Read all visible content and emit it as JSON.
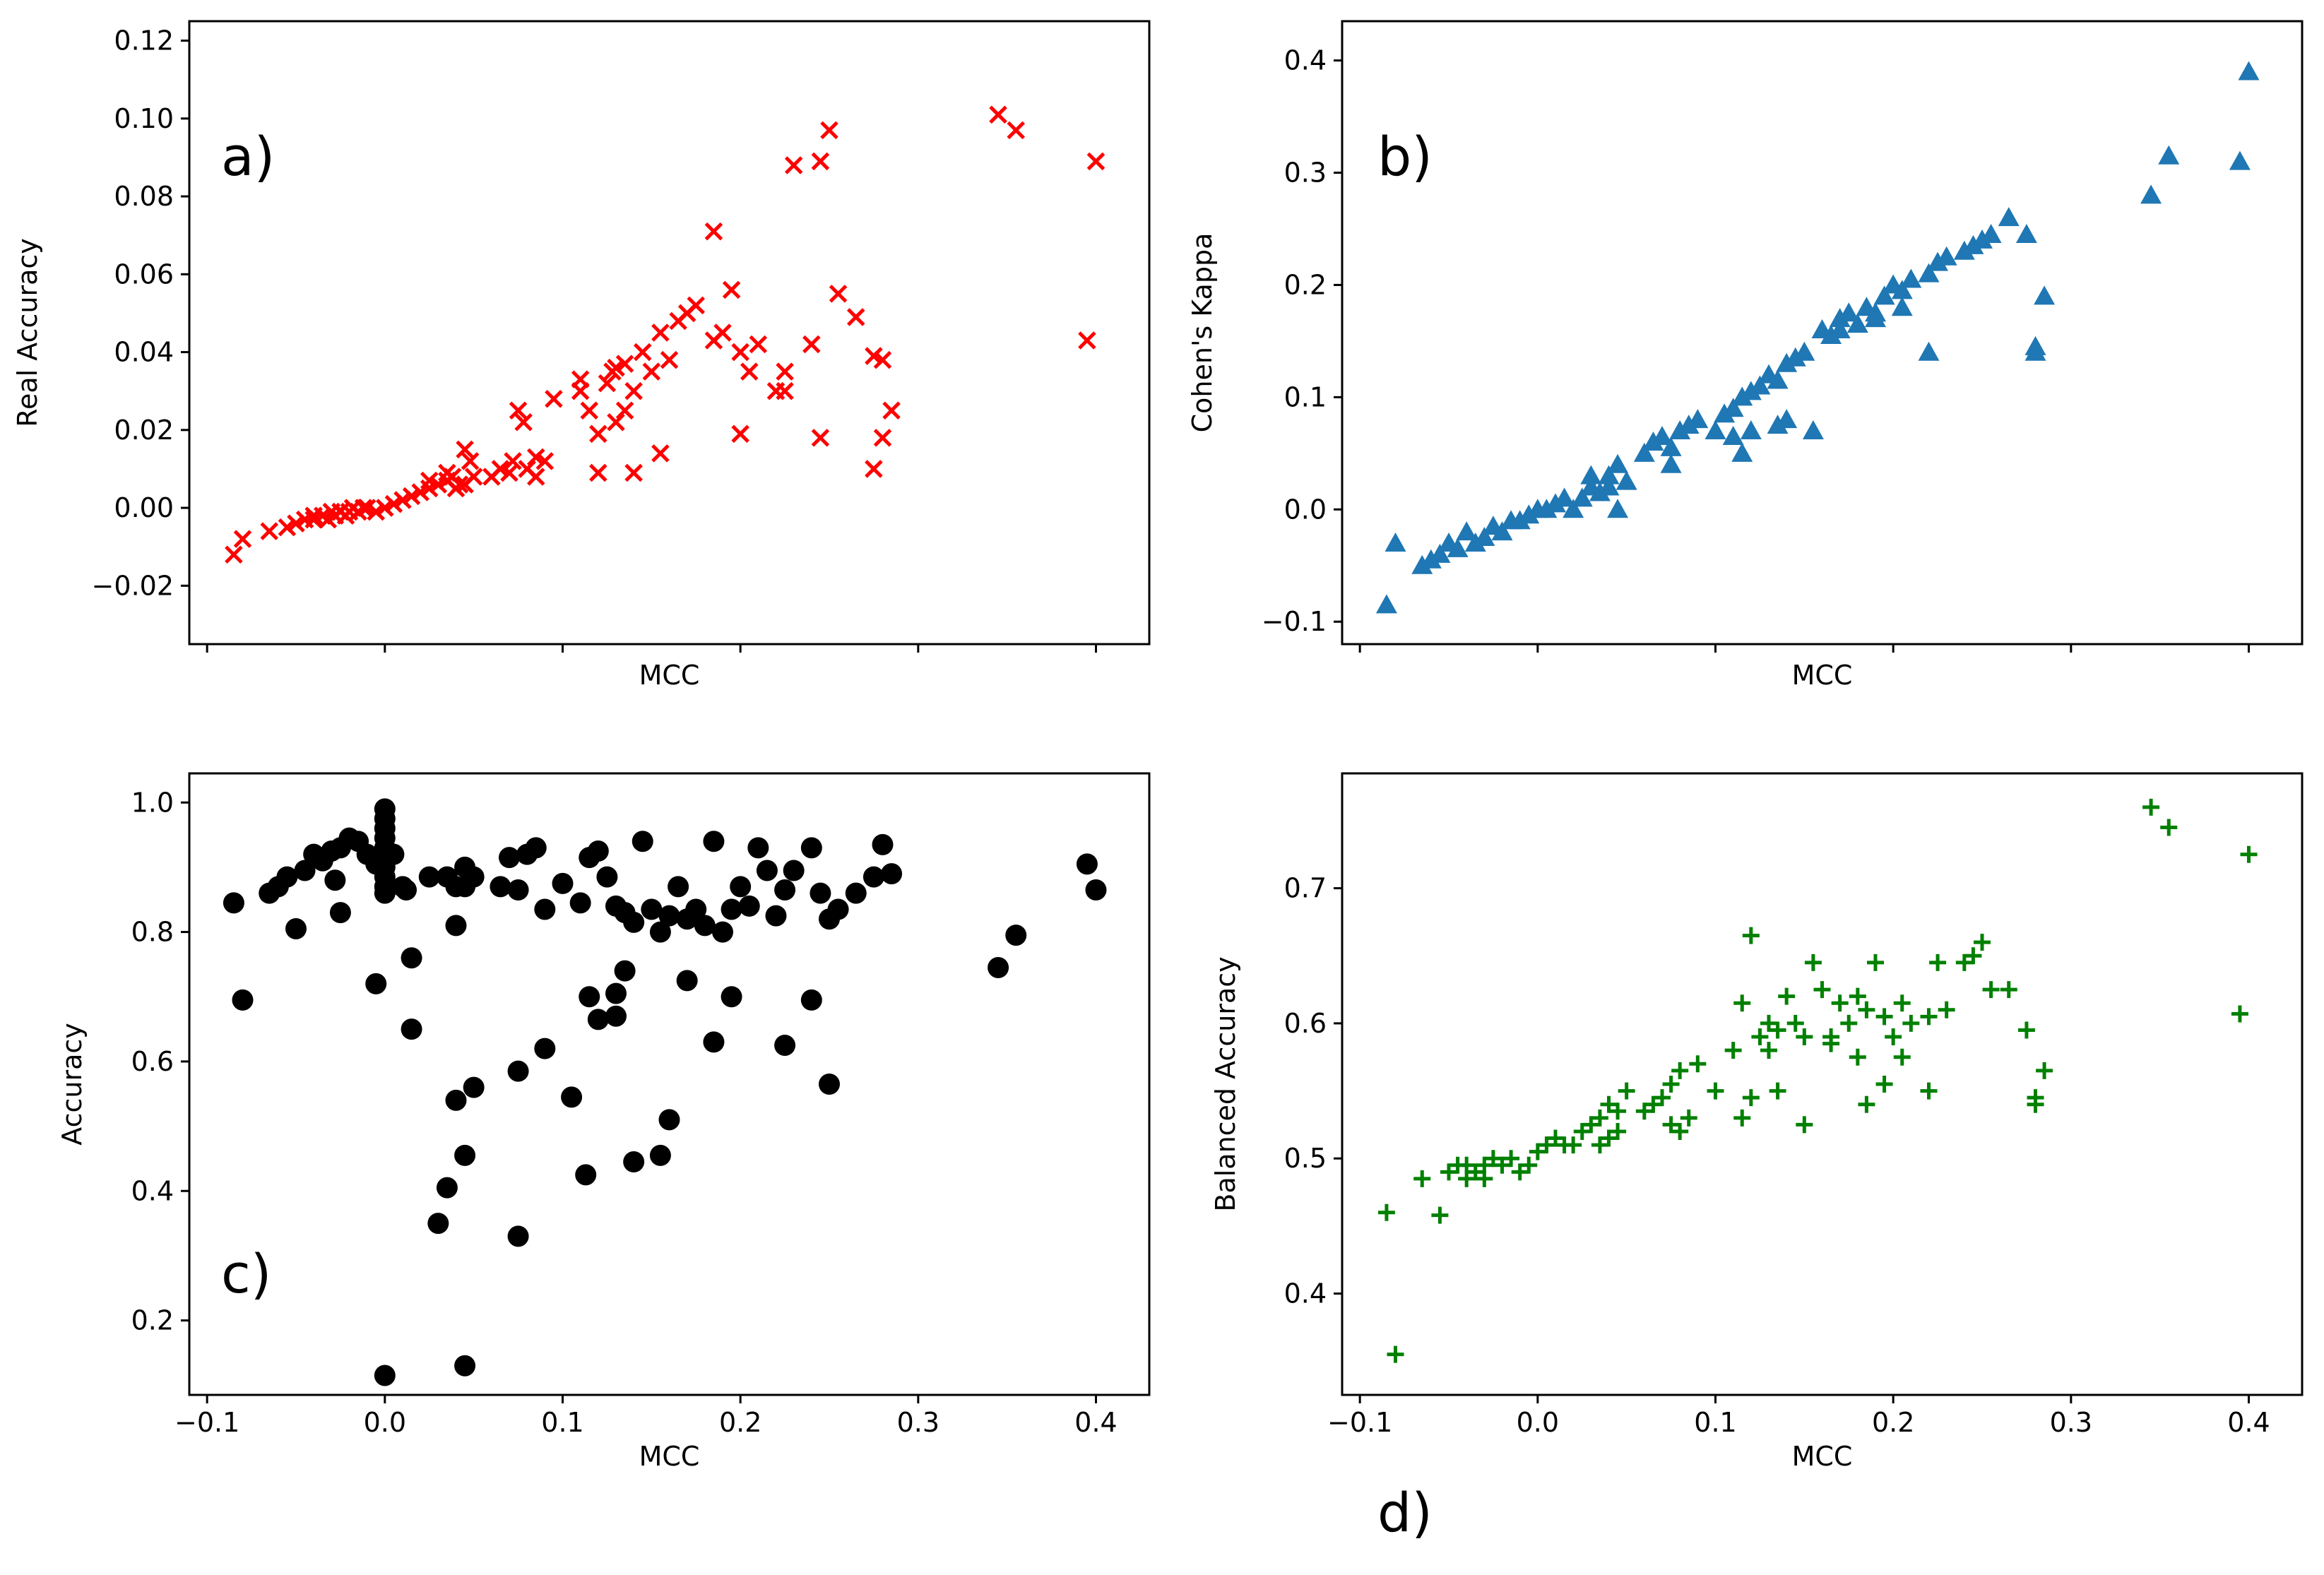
{
  "chart_data": [
    {
      "id": "a",
      "type": "scatter",
      "panel_label": "a)",
      "xlabel": "MCC",
      "ylabel": "Real Accuracy",
      "xlim": [
        -0.11,
        0.43
      ],
      "ylim": [
        -0.035,
        0.125
      ],
      "xticks": [
        -0.1,
        0.0,
        0.1,
        0.2,
        0.3,
        0.4
      ],
      "show_xtick_labels": false,
      "yticks": [
        -0.02,
        0.0,
        0.02,
        0.04,
        0.06,
        0.08,
        0.1,
        0.12
      ],
      "ytick_labels": [
        "−0.02",
        "0.00",
        "0.02",
        "0.04",
        "0.06",
        "0.08",
        "0.10",
        "0.12"
      ],
      "marker": "x",
      "color": "#ff0000",
      "x": [
        -0.085,
        -0.08,
        -0.065,
        -0.055,
        -0.05,
        -0.045,
        -0.04,
        -0.035,
        -0.032,
        -0.028,
        -0.025,
        -0.022,
        -0.02,
        -0.018,
        -0.015,
        -0.012,
        -0.01,
        -0.005,
        0.0,
        0.005,
        0.01,
        0.015,
        0.02,
        0.025,
        0.03,
        0.035,
        0.038,
        0.04,
        0.042,
        0.045,
        0.048,
        0.05,
        0.06,
        0.065,
        0.07,
        0.072,
        0.075,
        0.078,
        0.08,
        0.085,
        0.09,
        0.095,
        0.11,
        0.115,
        0.12,
        0.125,
        0.128,
        0.13,
        0.135,
        0.14,
        0.145,
        0.15,
        0.155,
        0.16,
        0.165,
        0.17,
        0.175,
        0.185,
        0.19,
        0.195,
        0.2,
        0.205,
        0.21,
        0.22,
        0.225,
        0.23,
        0.24,
        0.245,
        0.25,
        0.255,
        0.265,
        0.275,
        0.28,
        0.285,
        0.345,
        0.355,
        0.395,
        0.4,
        0.225,
        0.185,
        0.12,
        0.14,
        0.275,
        0.28,
        0.2,
        0.13,
        0.155,
        0.245,
        0.085,
        0.045,
        0.035,
        0.025,
        -0.03,
        -0.04,
        0.11,
        0.135
      ],
      "y": [
        -0.012,
        -0.008,
        -0.006,
        -0.005,
        -0.004,
        -0.003,
        -0.003,
        -0.002,
        -0.003,
        -0.002,
        -0.001,
        -0.002,
        -0.001,
        0.0,
        -0.001,
        0.0,
        0.0,
        -0.001,
        0.0,
        0.001,
        0.002,
        0.003,
        0.004,
        0.005,
        0.006,
        0.007,
        0.008,
        0.005,
        0.006,
        0.015,
        0.012,
        0.008,
        0.008,
        0.01,
        0.009,
        0.012,
        0.025,
        0.022,
        0.01,
        0.008,
        0.012,
        0.028,
        0.03,
        0.025,
        0.019,
        0.032,
        0.035,
        0.036,
        0.037,
        0.03,
        0.04,
        0.035,
        0.045,
        0.038,
        0.048,
        0.05,
        0.052,
        0.043,
        0.045,
        0.056,
        0.04,
        0.035,
        0.042,
        0.03,
        0.035,
        0.088,
        0.042,
        0.089,
        0.097,
        0.055,
        0.049,
        0.039,
        0.018,
        0.025,
        0.101,
        0.097,
        0.043,
        0.089,
        0.03,
        0.071,
        0.009,
        0.009,
        0.01,
        0.038,
        0.019,
        0.022,
        0.014,
        0.018,
        0.013,
        0.006,
        0.009,
        0.007,
        -0.001,
        -0.002,
        0.033,
        0.025
      ]
    },
    {
      "id": "b",
      "type": "scatter",
      "panel_label": "b)",
      "xlabel": "MCC",
      "ylabel": "Cohen's Kappa",
      "xlim": [
        -0.11,
        0.43
      ],
      "ylim": [
        -0.12,
        0.435
      ],
      "xticks": [
        -0.1,
        0.0,
        0.1,
        0.2,
        0.3,
        0.4
      ],
      "show_xtick_labels": false,
      "yticks": [
        -0.1,
        0.0,
        0.1,
        0.2,
        0.3,
        0.4
      ],
      "ytick_labels": [
        "−0.1",
        "0.0",
        "0.1",
        "0.2",
        "0.3",
        "0.4"
      ],
      "marker": "triangle",
      "color": "#1f77b4",
      "x": [
        -0.085,
        -0.08,
        -0.065,
        -0.06,
        -0.055,
        -0.05,
        -0.045,
        -0.04,
        -0.035,
        -0.03,
        -0.025,
        -0.02,
        -0.015,
        -0.01,
        -0.005,
        0.0,
        0.005,
        0.01,
        0.015,
        0.02,
        0.025,
        0.03,
        0.035,
        0.04,
        0.045,
        0.05,
        0.06,
        0.065,
        0.07,
        0.075,
        0.08,
        0.085,
        0.09,
        0.1,
        0.105,
        0.11,
        0.115,
        0.12,
        0.125,
        0.13,
        0.135,
        0.14,
        0.145,
        0.15,
        0.16,
        0.165,
        0.17,
        0.175,
        0.18,
        0.185,
        0.19,
        0.195,
        0.2,
        0.205,
        0.21,
        0.22,
        0.225,
        0.23,
        0.24,
        0.245,
        0.25,
        0.255,
        0.265,
        0.275,
        0.28,
        0.28,
        0.285,
        0.345,
        0.355,
        0.395,
        0.4,
        0.12,
        0.14,
        0.155,
        0.22,
        0.205,
        0.19,
        0.11,
        0.075,
        0.045,
        0.04,
        0.03,
        0.115,
        0.135,
        0.17
      ],
      "y": [
        -0.085,
        -0.03,
        -0.05,
        -0.045,
        -0.04,
        -0.03,
        -0.035,
        -0.02,
        -0.03,
        -0.025,
        -0.015,
        -0.02,
        -0.01,
        -0.01,
        -0.005,
        0.0,
        0.0,
        0.005,
        0.01,
        0.0,
        0.01,
        0.02,
        0.015,
        0.03,
        0.04,
        0.025,
        0.05,
        0.06,
        0.065,
        0.055,
        0.07,
        0.075,
        0.08,
        0.07,
        0.085,
        0.09,
        0.1,
        0.105,
        0.11,
        0.12,
        0.115,
        0.13,
        0.135,
        0.14,
        0.16,
        0.155,
        0.17,
        0.175,
        0.165,
        0.18,
        0.175,
        0.19,
        0.2,
        0.195,
        0.205,
        0.21,
        0.22,
        0.225,
        0.23,
        0.235,
        0.24,
        0.245,
        0.26,
        0.245,
        0.145,
        0.14,
        0.19,
        0.28,
        0.315,
        0.31,
        0.39,
        0.07,
        0.08,
        0.07,
        0.14,
        0.18,
        0.17,
        0.065,
        0.04,
        0.0,
        0.02,
        0.03,
        0.05,
        0.075,
        0.16
      ]
    },
    {
      "id": "c",
      "type": "scatter",
      "panel_label": "c)",
      "xlabel": "MCC",
      "ylabel": "Accuracy",
      "xlim": [
        -0.11,
        0.43
      ],
      "ylim": [
        0.085,
        1.045
      ],
      "xticks": [
        -0.1,
        0.0,
        0.1,
        0.2,
        0.3,
        0.4
      ],
      "xtick_labels": [
        "−0.1",
        "0.0",
        "0.1",
        "0.2",
        "0.3",
        "0.4"
      ],
      "show_xtick_labels": true,
      "yticks": [
        0.2,
        0.4,
        0.6,
        0.8,
        1.0
      ],
      "ytick_labels": [
        "0.2",
        "0.4",
        "0.6",
        "0.8",
        "1.0"
      ],
      "marker": "circle",
      "color": "#000000",
      "x": [
        -0.085,
        -0.08,
        -0.065,
        -0.06,
        -0.055,
        -0.05,
        -0.045,
        -0.04,
        -0.035,
        -0.03,
        -0.028,
        -0.025,
        -0.02,
        -0.015,
        -0.01,
        -0.005,
        0.0,
        0.0,
        0.0,
        0.0,
        0.0,
        0.0,
        0.0,
        0.0,
        0.0,
        0.0,
        0.005,
        0.01,
        0.015,
        0.025,
        0.035,
        0.04,
        0.045,
        0.05,
        0.065,
        0.07,
        0.075,
        0.08,
        0.085,
        0.09,
        0.1,
        0.11,
        0.115,
        0.12,
        0.125,
        0.13,
        0.135,
        0.14,
        0.145,
        0.15,
        0.155,
        0.16,
        0.165,
        0.17,
        0.175,
        0.18,
        0.185,
        0.19,
        0.195,
        0.2,
        0.205,
        0.21,
        0.215,
        0.22,
        0.225,
        0.23,
        0.24,
        0.245,
        0.25,
        0.255,
        0.265,
        0.275,
        0.28,
        0.285,
        0.345,
        0.355,
        0.395,
        0.4,
        -0.005,
        0.015,
        0.04,
        0.045,
        0.05,
        0.075,
        0.09,
        0.105,
        0.113,
        0.12,
        0.13,
        0.135,
        0.16,
        0.17,
        0.185,
        0.195,
        0.225,
        0.24,
        0.25,
        0.14,
        0.155,
        0.035,
        0.045,
        0.03,
        0.075,
        0.0,
        0.045,
        0.012,
        0.04,
        0.115,
        0.13,
        -0.025
      ],
      "y": [
        0.845,
        0.695,
        0.86,
        0.87,
        0.885,
        0.805,
        0.895,
        0.92,
        0.91,
        0.925,
        0.88,
        0.93,
        0.945,
        0.94,
        0.92,
        0.905,
        0.99,
        0.975,
        0.96,
        0.945,
        0.93,
        0.915,
        0.9,
        0.885,
        0.87,
        0.86,
        0.92,
        0.87,
        0.76,
        0.885,
        0.885,
        0.87,
        0.9,
        0.885,
        0.87,
        0.915,
        0.865,
        0.92,
        0.93,
        0.835,
        0.875,
        0.845,
        0.915,
        0.925,
        0.885,
        0.84,
        0.83,
        0.815,
        0.94,
        0.835,
        0.8,
        0.825,
        0.87,
        0.82,
        0.835,
        0.81,
        0.94,
        0.8,
        0.835,
        0.87,
        0.84,
        0.93,
        0.895,
        0.825,
        0.865,
        0.895,
        0.93,
        0.86,
        0.82,
        0.835,
        0.86,
        0.885,
        0.935,
        0.89,
        0.745,
        0.795,
        0.905,
        0.865,
        0.72,
        0.65,
        0.54,
        0.455,
        0.56,
        0.585,
        0.62,
        0.545,
        0.425,
        0.665,
        0.705,
        0.74,
        0.51,
        0.725,
        0.63,
        0.7,
        0.625,
        0.695,
        0.565,
        0.445,
        0.455,
        0.405,
        0.13,
        0.35,
        0.33,
        0.115,
        0.87,
        0.865,
        0.81,
        0.7,
        0.67,
        0.83
      ]
    },
    {
      "id": "d",
      "type": "scatter",
      "panel_label": "d)",
      "xlabel": "MCC",
      "ylabel": "Balanced Accuracy",
      "xlim": [
        -0.11,
        0.43
      ],
      "ylim": [
        0.325,
        0.785
      ],
      "xticks": [
        -0.1,
        0.0,
        0.1,
        0.2,
        0.3,
        0.4
      ],
      "xtick_labels": [
        "−0.1",
        "0.0",
        "0.1",
        "0.2",
        "0.3",
        "0.4"
      ],
      "show_xtick_labels": true,
      "yticks": [
        0.4,
        0.5,
        0.6,
        0.7
      ],
      "ytick_labels": [
        "0.4",
        "0.5",
        "0.6",
        "0.7"
      ],
      "marker": "plus",
      "color": "#008000",
      "x": [
        -0.085,
        -0.08,
        -0.065,
        -0.055,
        -0.05,
        -0.045,
        -0.04,
        -0.035,
        -0.03,
        -0.025,
        -0.02,
        -0.015,
        -0.01,
        -0.005,
        0.0,
        0.005,
        0.01,
        0.015,
        0.02,
        0.025,
        0.03,
        0.035,
        0.04,
        0.045,
        0.05,
        0.06,
        0.065,
        0.07,
        0.075,
        0.08,
        0.085,
        0.09,
        0.1,
        0.11,
        0.115,
        0.12,
        0.125,
        0.13,
        0.135,
        0.14,
        0.145,
        0.15,
        0.155,
        0.16,
        0.165,
        0.17,
        0.175,
        0.18,
        0.185,
        0.19,
        0.195,
        0.2,
        0.205,
        0.21,
        0.22,
        0.225,
        0.23,
        0.24,
        0.245,
        0.25,
        0.255,
        0.265,
        0.275,
        0.28,
        0.28,
        0.285,
        0.345,
        0.355,
        0.395,
        0.4,
        0.12,
        0.135,
        0.15,
        0.185,
        0.195,
        0.22,
        0.205,
        0.115,
        0.08,
        0.045,
        0.04,
        0.035,
        0.075,
        -0.03,
        -0.04,
        0.13,
        0.165,
        0.18
      ],
      "y": [
        0.46,
        0.355,
        0.485,
        0.458,
        0.49,
        0.495,
        0.485,
        0.49,
        0.495,
        0.5,
        0.495,
        0.5,
        0.49,
        0.495,
        0.505,
        0.51,
        0.515,
        0.51,
        0.51,
        0.52,
        0.525,
        0.53,
        0.54,
        0.52,
        0.55,
        0.535,
        0.54,
        0.545,
        0.555,
        0.565,
        0.53,
        0.57,
        0.55,
        0.58,
        0.615,
        0.665,
        0.59,
        0.6,
        0.595,
        0.62,
        0.6,
        0.59,
        0.645,
        0.625,
        0.59,
        0.615,
        0.6,
        0.62,
        0.61,
        0.645,
        0.605,
        0.59,
        0.615,
        0.6,
        0.605,
        0.645,
        0.61,
        0.645,
        0.65,
        0.66,
        0.625,
        0.625,
        0.595,
        0.545,
        0.54,
        0.565,
        0.76,
        0.745,
        0.607,
        0.725,
        0.545,
        0.55,
        0.525,
        0.54,
        0.555,
        0.55,
        0.575,
        0.53,
        0.52,
        0.535,
        0.515,
        0.51,
        0.525,
        0.485,
        0.495,
        0.58,
        0.585,
        0.575
      ]
    }
  ]
}
